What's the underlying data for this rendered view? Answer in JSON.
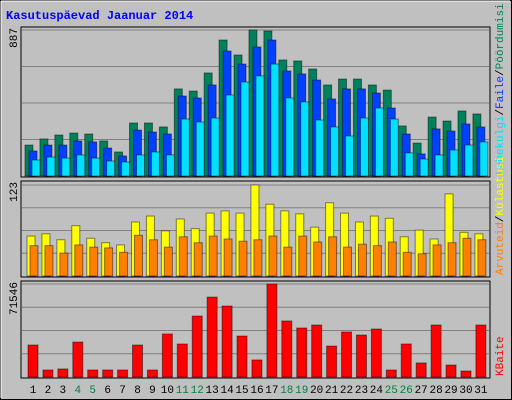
{
  "chart_data": [
    {
      "type": "bar",
      "title": "Kasutuspäevad Jaanuar 2014",
      "ylim": [
        0,
        887
      ],
      "yticks": [
        887
      ],
      "legend_separator": "/",
      "series": [
        {
          "name": "Pöördumisi",
          "color": "#00805c",
          "values": [
            188,
            225,
            249,
            261,
            255,
            213,
            146,
            322,
            322,
            298,
            529,
            516,
            626,
            826,
            735,
            887,
            881,
            705,
            699,
            650,
            553,
            589,
            589,
            553,
            522,
            304,
            200,
            358,
            334,
            395,
            377
          ]
        },
        {
          "name": "Faile",
          "color": "#0040ff",
          "values": [
            152,
            188,
            188,
            213,
            207,
            170,
            122,
            279,
            267,
            255,
            486,
            474,
            553,
            759,
            680,
            784,
            826,
            638,
            620,
            583,
            468,
            529,
            529,
            504,
            413,
            255,
            134,
            286,
            273,
            316,
            298
          ]
        },
        {
          "name": "Lehekülgi",
          "color": "#00e0ff",
          "values": [
            97,
            115,
            109,
            128,
            109,
            91,
            85,
            128,
            146,
            128,
            346,
            328,
            352,
            492,
            571,
            608,
            680,
            474,
            450,
            340,
            298,
            243,
            352,
            413,
            346,
            140,
            103,
            128,
            158,
            188,
            207
          ]
        }
      ]
    },
    {
      "type": "bar",
      "ylim": [
        0,
        123
      ],
      "yticks": [
        123
      ],
      "legend_separator": "/",
      "series": [
        {
          "name": "Külastusi",
          "color": "#ffff00",
          "values": [
            54,
            57,
            49,
            68,
            51,
            45,
            42,
            73,
            81,
            61,
            77,
            64,
            85,
            88,
            85,
            123,
            97,
            88,
            84,
            66,
            99,
            85,
            73,
            81,
            78,
            53,
            62,
            50,
            111,
            59,
            57
          ]
        },
        {
          "name": "Arvuteid",
          "color": "#ff8000",
          "values": [
            41,
            41,
            31,
            42,
            39,
            38,
            32,
            55,
            49,
            39,
            53,
            45,
            54,
            50,
            47,
            49,
            54,
            39,
            54,
            46,
            53,
            39,
            43,
            41,
            46,
            32,
            30,
            42,
            45,
            51,
            49
          ]
        }
      ]
    },
    {
      "type": "bar",
      "ylim": [
        0,
        71546
      ],
      "yticks": [
        71546
      ],
      "categories": [
        "1",
        "2",
        "3",
        "4",
        "5",
        "6",
        "7",
        "8",
        "9",
        "10",
        "11",
        "12",
        "13",
        "14",
        "15",
        "16",
        "17",
        "18",
        "19",
        "20",
        "21",
        "22",
        "23",
        "24",
        "25",
        "26",
        "27",
        "28",
        "29",
        "30",
        "31"
      ],
      "category_colors": [
        "#000000",
        "#000000",
        "#000000",
        "#008040",
        "#008040",
        "#000000",
        "#000000",
        "#000000",
        "#000000",
        "#000000",
        "#008040",
        "#008040",
        "#000000",
        "#000000",
        "#000000",
        "#000000",
        "#000000",
        "#008040",
        "#008040",
        "#000000",
        "#000000",
        "#000000",
        "#000000",
        "#000000",
        "#008040",
        "#008040",
        "#000000",
        "#000000",
        "#000000",
        "#000000",
        "#000000"
      ],
      "series": [
        {
          "name": "KBaite",
          "color": "#ff0000",
          "values": [
            24600,
            5400,
            6200,
            26900,
            5400,
            5400,
            5400,
            24600,
            5400,
            33100,
            25400,
            46900,
            61500,
            54600,
            31500,
            13100,
            71546,
            43100,
            37700,
            40000,
            23800,
            34600,
            32300,
            36900,
            5400,
            25400,
            10800,
            40000,
            9200,
            4600,
            40000
          ]
        }
      ]
    }
  ]
}
